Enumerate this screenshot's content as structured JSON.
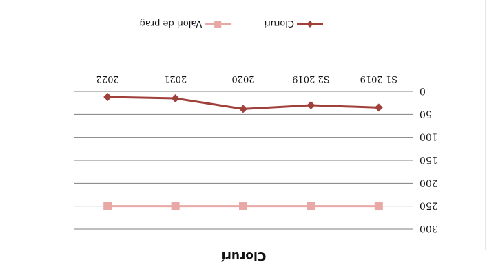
{
  "chart_data": {
    "type": "line",
    "title": "Clorurí",
    "xlabel": "",
    "ylabel": "",
    "categories": [
      "S1 2019",
      "S2 2019",
      "2020",
      "2021",
      "2022"
    ],
    "series": [
      {
        "name": "Clorurí",
        "values": [
          35,
          30,
          38,
          15,
          12
        ],
        "color": "#a0403a",
        "marker": "diamond"
      },
      {
        "name": "Valori de prag",
        "values": [
          250,
          250,
          250,
          250,
          250
        ],
        "color": "#e8a8a6",
        "marker": "square"
      }
    ],
    "ylim": [
      0,
      300
    ],
    "yticks": [
      "0",
      "50",
      "100",
      "150",
      "200",
      "250",
      "300"
    ],
    "grid": true,
    "legend_position": "bottom",
    "rendered_upside_down": true
  }
}
